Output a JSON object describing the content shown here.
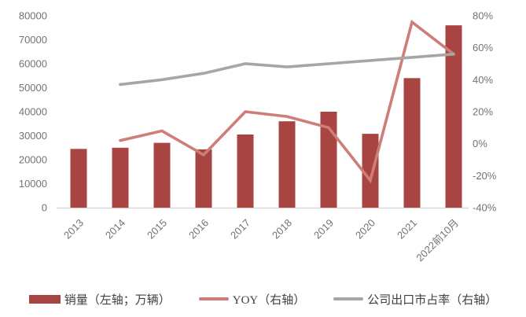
{
  "chart_data": {
    "type": "bar",
    "subtype": "combo-bar-line-dual-axis",
    "title": "",
    "categories": [
      "2013",
      "2014",
      "2015",
      "2016",
      "2017",
      "2018",
      "2019",
      "2020",
      "2021",
      "2022前10月"
    ],
    "series": [
      {
        "name": "销量（左轴；万辆）",
        "chart_type": "bar",
        "axis": "left",
        "color": "#A84442",
        "values": [
          24500,
          25000,
          27000,
          24300,
          30500,
          36000,
          40000,
          30800,
          54000,
          76000
        ]
      },
      {
        "name": "YOY（右轴）",
        "chart_type": "line",
        "axis": "right",
        "color": "#CE7E79",
        "values": [
          null,
          2,
          8,
          -7,
          20,
          17,
          10,
          -23,
          76,
          56
        ]
      },
      {
        "name": "公司出口市占率（右轴）",
        "chart_type": "line",
        "axis": "right",
        "color": "#A6A6A6",
        "values": [
          null,
          37,
          40,
          44,
          50,
          48,
          50,
          52,
          54,
          56
        ]
      }
    ],
    "left_axis": {
      "min": 0,
      "max": 80000,
      "step": 10000,
      "tick_labels": [
        "0",
        "10000",
        "20000",
        "30000",
        "40000",
        "50000",
        "60000",
        "70000",
        "80000"
      ]
    },
    "right_axis": {
      "min": -40,
      "max": 80,
      "step": 20,
      "tick_labels": [
        "-40%",
        "-20%",
        "0%",
        "20%",
        "40%",
        "60%",
        "80%"
      ]
    },
    "grid": false,
    "legend_position": "bottom",
    "xlabel": "",
    "ylabel": ""
  },
  "legend": {
    "items": [
      {
        "label": "销量（左轴；万辆）",
        "swatch": "bar",
        "color": "#A84442"
      },
      {
        "label": "YOY（右轴）",
        "swatch": "line",
        "color": "#CE7E79"
      },
      {
        "label": "公司出口市占率（右轴）",
        "swatch": "line",
        "color": "#A6A6A6"
      }
    ]
  },
  "style": {
    "axis_text_color": "#737373",
    "legend_text_color": "#404040",
    "axis_line_color": "#D8D8D8",
    "background": "#FFFFFF"
  }
}
